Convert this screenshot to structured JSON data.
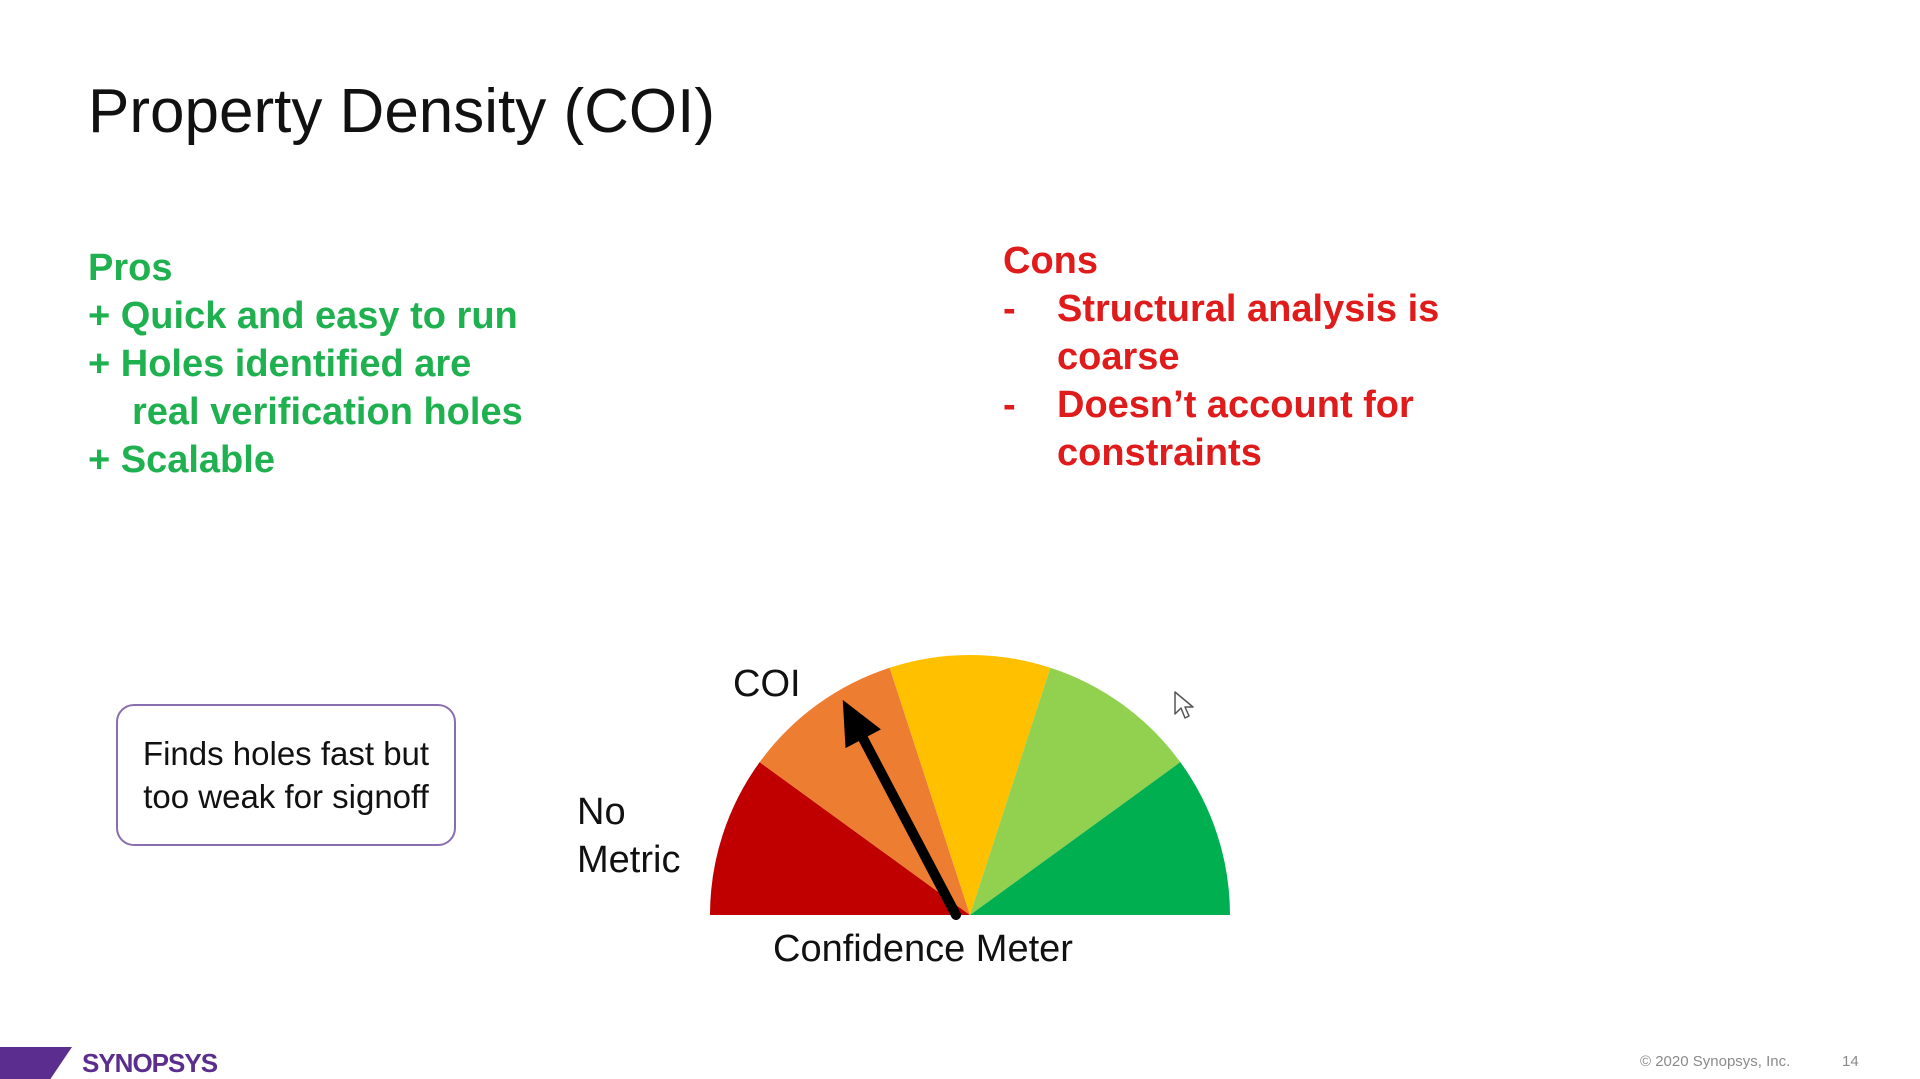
{
  "slide": {
    "title": "Property Density (COI)",
    "pros": {
      "heading": "Pros",
      "items": [
        "+ Quick and easy to run",
        "+ Holes identified are",
        "real verification holes",
        "+ Scalable"
      ]
    },
    "cons": {
      "heading": "Cons",
      "bullet": "-",
      "items": [
        "Structural analysis is coarse",
        "Doesn’t account for constraints"
      ]
    },
    "callout": "Finds holes fast but too weak for signoff",
    "meter": {
      "label": "Confidence Meter",
      "low_label": "No Metric",
      "needle_label": "COI",
      "needle_level": 0.33,
      "segment_colors": [
        "#c00000",
        "#ed7d31",
        "#ffc000",
        "#92d050",
        "#00b050"
      ]
    },
    "footer": {
      "logo": "SYNOPSYS",
      "copyright": "© 2020 Synopsys, Inc.",
      "page_number": "14"
    }
  }
}
